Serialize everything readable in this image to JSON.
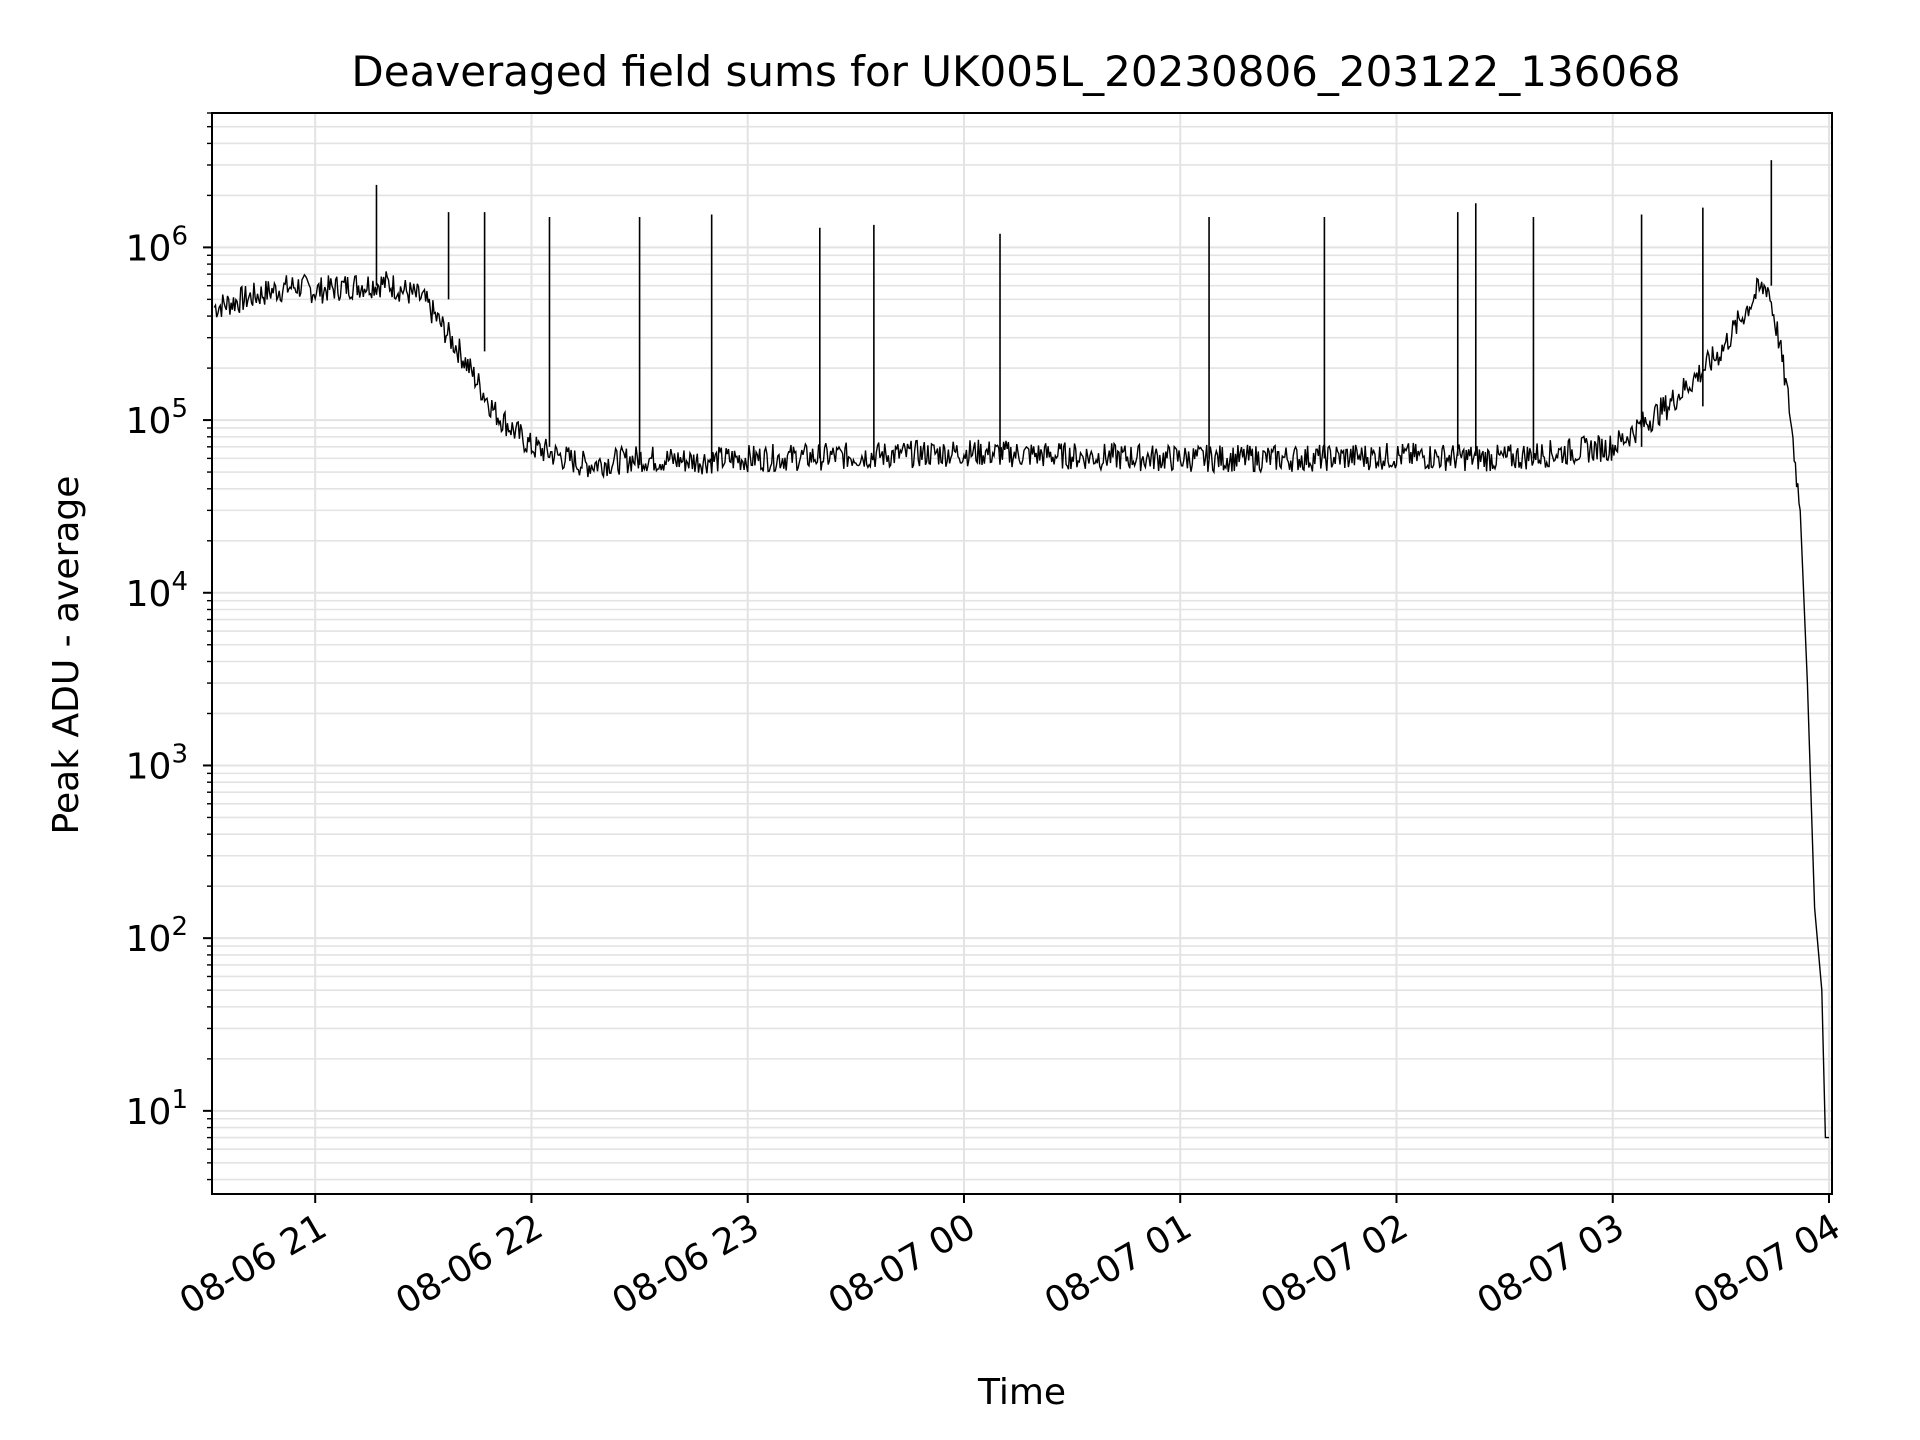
{
  "chart_data": {
    "type": "line",
    "title": "Deaveraged field sums for UK005L_20230806_203122_136068",
    "xlabel": "Time",
    "ylabel": "Peak ADU - average",
    "yscale": "log",
    "ylim": [
      3.3,
      6000000
    ],
    "xlim": [
      "2023-08-06 20:31:22",
      "2023-08-07 04:00:50"
    ],
    "grid": true,
    "line_color": "#000000",
    "x_ticks": [
      {
        "label": "08-06 21",
        "value": "2023-08-06 21:00"
      },
      {
        "label": "08-06 22",
        "value": "2023-08-06 22:00"
      },
      {
        "label": "08-06 23",
        "value": "2023-08-06 23:00"
      },
      {
        "label": "08-07 00",
        "value": "2023-08-07 00:00"
      },
      {
        "label": "08-07 01",
        "value": "2023-08-07 01:00"
      },
      {
        "label": "08-07 02",
        "value": "2023-08-07 02:00"
      },
      {
        "label": "08-07 03",
        "value": "2023-08-07 03:00"
      },
      {
        "label": "08-07 04",
        "value": "2023-08-07 04:00"
      }
    ],
    "y_ticks": [
      {
        "base": "10",
        "exp": "1",
        "value": 10
      },
      {
        "base": "10",
        "exp": "2",
        "value": 100
      },
      {
        "base": "10",
        "exp": "3",
        "value": 1000
      },
      {
        "base": "10",
        "exp": "4",
        "value": 10000
      },
      {
        "base": "10",
        "exp": "5",
        "value": 100000
      },
      {
        "base": "10",
        "exp": "6",
        "value": 1000000
      }
    ],
    "series": [
      {
        "x": [
          "2023-08-06 20:32",
          "2023-08-06 20:40",
          "2023-08-06 20:48",
          "2023-08-06 20:55",
          "2023-08-06 21:00",
          "2023-08-06 21:10",
          "2023-08-06 21:20",
          "2023-08-06 21:30",
          "2023-08-06 21:40",
          "2023-08-06 21:50",
          "2023-08-06 22:00",
          "2023-08-06 22:15",
          "2023-08-06 22:30",
          "2023-08-06 22:45",
          "2023-08-06 23:00",
          "2023-08-06 23:30",
          "2023-08-07 00:00",
          "2023-08-07 00:30",
          "2023-08-07 01:00",
          "2023-08-07 01:30",
          "2023-08-07 02:00",
          "2023-08-07 02:30",
          "2023-08-07 03:00",
          "2023-08-07 03:15",
          "2023-08-07 03:30",
          "2023-08-07 03:40",
          "2023-08-07 03:43",
          "2023-08-07 03:46",
          "2023-08-07 03:49",
          "2023-08-07 03:52",
          "2023-08-07 03:54",
          "2023-08-07 03:56",
          "2023-08-07 03:58",
          "2023-08-07 03:59",
          "2023-08-07 04:00"
        ],
        "y": [
          450000,
          500000,
          560000,
          600000,
          560000,
          600000,
          620000,
          500000,
          250000,
          110000,
          70000,
          55000,
          60000,
          58000,
          60000,
          62000,
          65000,
          62000,
          60000,
          60000,
          62000,
          60000,
          70000,
          120000,
          250000,
          550000,
          600000,
          300000,
          120000,
          30000,
          3000,
          150,
          50,
          7,
          7
        ],
        "spikes": [
          {
            "x": "2023-08-06 21:17",
            "y": 2300000
          },
          {
            "x": "2023-08-06 21:37",
            "y": 1600000
          },
          {
            "x": "2023-08-06 21:47",
            "y": 1600000
          },
          {
            "x": "2023-08-06 22:05",
            "y": 1500000
          },
          {
            "x": "2023-08-06 22:30",
            "y": 1500000
          },
          {
            "x": "2023-08-06 22:50",
            "y": 1550000
          },
          {
            "x": "2023-08-06 23:20",
            "y": 1300000
          },
          {
            "x": "2023-08-06 23:35",
            "y": 1350000
          },
          {
            "x": "2023-08-07 00:10",
            "y": 1200000
          },
          {
            "x": "2023-08-07 01:08",
            "y": 1500000
          },
          {
            "x": "2023-08-07 01:40",
            "y": 1500000
          },
          {
            "x": "2023-08-07 02:17",
            "y": 1600000
          },
          {
            "x": "2023-08-07 02:22",
            "y": 1800000
          },
          {
            "x": "2023-08-07 02:38",
            "y": 1500000
          },
          {
            "x": "2023-08-07 03:08",
            "y": 1550000
          },
          {
            "x": "2023-08-07 03:25",
            "y": 1700000
          },
          {
            "x": "2023-08-07 03:44",
            "y": 3200000
          }
        ]
      }
    ]
  }
}
